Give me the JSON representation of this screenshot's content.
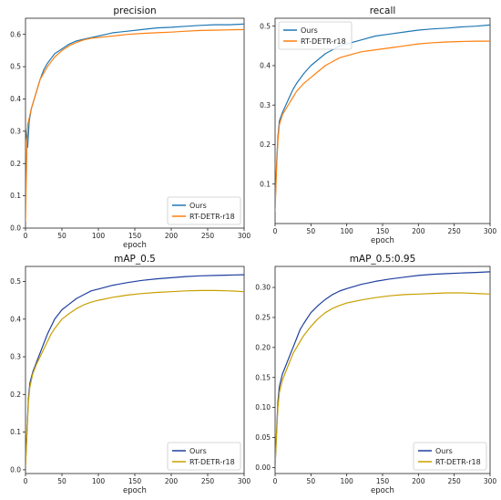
{
  "chart_data": [
    {
      "type": "line",
      "title": "precision",
      "xlabel": "epoch",
      "ylabel": "",
      "xlim": [
        0,
        300
      ],
      "ylim": [
        0.0,
        0.65
      ],
      "xticks": [
        "0",
        "50",
        "100",
        "150",
        "200",
        "250",
        "300"
      ],
      "yticks": [
        "0.0",
        "0.1",
        "0.2",
        "0.3",
        "0.4",
        "0.5",
        "0.6"
      ],
      "legend": "bottom-right",
      "series": [
        {
          "name": "Ours",
          "color": "#1f77b4",
          "points": [
            [
              0,
              0.31
            ],
            [
              2,
              0.27
            ],
            [
              3,
              0.25
            ],
            [
              5,
              0.33
            ],
            [
              8,
              0.37
            ],
            [
              12,
              0.4
            ],
            [
              16,
              0.43
            ],
            [
              20,
              0.46
            ],
            [
              25,
              0.49
            ],
            [
              30,
              0.51
            ],
            [
              35,
              0.525
            ],
            [
              40,
              0.54
            ],
            [
              50,
              0.555
            ],
            [
              60,
              0.57
            ],
            [
              70,
              0.58
            ],
            [
              80,
              0.585
            ],
            [
              90,
              0.59
            ],
            [
              100,
              0.595
            ],
            [
              110,
              0.6
            ],
            [
              120,
              0.605
            ],
            [
              140,
              0.61
            ],
            [
              160,
              0.615
            ],
            [
              180,
              0.62
            ],
            [
              200,
              0.622
            ],
            [
              220,
              0.625
            ],
            [
              240,
              0.628
            ],
            [
              260,
              0.63
            ],
            [
              280,
              0.63
            ],
            [
              300,
              0.632
            ]
          ]
        },
        {
          "name": "RT-DETR-r18",
          "color": "#ff7f0e",
          "points": [
            [
              0,
              0.02
            ],
            [
              1,
              0.15
            ],
            [
              2,
              0.26
            ],
            [
              3,
              0.32
            ],
            [
              5,
              0.34
            ],
            [
              8,
              0.37
            ],
            [
              12,
              0.4
            ],
            [
              16,
              0.43
            ],
            [
              20,
              0.46
            ],
            [
              25,
              0.48
            ],
            [
              30,
              0.5
            ],
            [
              35,
              0.515
            ],
            [
              40,
              0.53
            ],
            [
              50,
              0.55
            ],
            [
              60,
              0.565
            ],
            [
              70,
              0.575
            ],
            [
              80,
              0.583
            ],
            [
              90,
              0.588
            ],
            [
              100,
              0.59
            ],
            [
              110,
              0.593
            ],
            [
              120,
              0.595
            ],
            [
              140,
              0.6
            ],
            [
              160,
              0.603
            ],
            [
              180,
              0.605
            ],
            [
              200,
              0.607
            ],
            [
              220,
              0.61
            ],
            [
              240,
              0.612
            ],
            [
              260,
              0.613
            ],
            [
              280,
              0.614
            ],
            [
              300,
              0.615
            ]
          ]
        }
      ]
    },
    {
      "type": "line",
      "title": "recall",
      "xlabel": "epoch",
      "ylabel": "",
      "xlim": [
        0,
        300
      ],
      "ylim": [
        0.0,
        0.52
      ],
      "xticks": [
        "0",
        "50",
        "100",
        "150",
        "200",
        "250",
        "300"
      ],
      "yticks": [
        "0.1",
        "0.2",
        "0.3",
        "0.4",
        "0.5"
      ],
      "legend": "top-left",
      "series": [
        {
          "name": "Ours",
          "color": "#1f77b4",
          "points": [
            [
              0,
              0.04
            ],
            [
              2,
              0.15
            ],
            [
              4,
              0.22
            ],
            [
              6,
              0.26
            ],
            [
              10,
              0.28
            ],
            [
              15,
              0.3
            ],
            [
              20,
              0.32
            ],
            [
              25,
              0.34
            ],
            [
              30,
              0.355
            ],
            [
              40,
              0.38
            ],
            [
              50,
              0.4
            ],
            [
              60,
              0.415
            ],
            [
              70,
              0.43
            ],
            [
              80,
              0.44
            ],
            [
              90,
              0.45
            ],
            [
              100,
              0.455
            ],
            [
              120,
              0.465
            ],
            [
              140,
              0.475
            ],
            [
              160,
              0.48
            ],
            [
              180,
              0.485
            ],
            [
              200,
              0.49
            ],
            [
              220,
              0.493
            ],
            [
              240,
              0.495
            ],
            [
              260,
              0.498
            ],
            [
              280,
              0.5
            ],
            [
              300,
              0.503
            ]
          ]
        },
        {
          "name": "RT-DETR-r18",
          "color": "#ff7f0e",
          "points": [
            [
              0,
              0.03
            ],
            [
              2,
              0.14
            ],
            [
              4,
              0.21
            ],
            [
              6,
              0.25
            ],
            [
              10,
              0.275
            ],
            [
              15,
              0.29
            ],
            [
              20,
              0.305
            ],
            [
              25,
              0.32
            ],
            [
              30,
              0.335
            ],
            [
              40,
              0.355
            ],
            [
              50,
              0.37
            ],
            [
              60,
              0.385
            ],
            [
              70,
              0.4
            ],
            [
              80,
              0.41
            ],
            [
              90,
              0.42
            ],
            [
              100,
              0.425
            ],
            [
              120,
              0.435
            ],
            [
              140,
              0.44
            ],
            [
              160,
              0.445
            ],
            [
              180,
              0.45
            ],
            [
              200,
              0.455
            ],
            [
              220,
              0.458
            ],
            [
              240,
              0.46
            ],
            [
              260,
              0.461
            ],
            [
              280,
              0.462
            ],
            [
              300,
              0.462
            ]
          ]
        }
      ]
    },
    {
      "type": "line",
      "title": "mAP_0.5",
      "xlabel": "epoch",
      "ylabel": "",
      "xlim": [
        0,
        300
      ],
      "ylim": [
        -0.01,
        0.54
      ],
      "xticks": [
        "0",
        "50",
        "100",
        "150",
        "200",
        "250",
        "300"
      ],
      "yticks": [
        "0.0",
        "0.1",
        "0.2",
        "0.3",
        "0.4",
        "0.5"
      ],
      "legend": "bottom-right",
      "series": [
        {
          "name": "Ours",
          "color": "#1f3fa0",
          "points": [
            [
              0,
              0.01
            ],
            [
              2,
              0.1
            ],
            [
              4,
              0.19
            ],
            [
              6,
              0.23
            ],
            [
              10,
              0.26
            ],
            [
              15,
              0.285
            ],
            [
              20,
              0.31
            ],
            [
              25,
              0.335
            ],
            [
              30,
              0.36
            ],
            [
              35,
              0.38
            ],
            [
              40,
              0.4
            ],
            [
              50,
              0.425
            ],
            [
              60,
              0.44
            ],
            [
              70,
              0.455
            ],
            [
              80,
              0.465
            ],
            [
              90,
              0.475
            ],
            [
              100,
              0.48
            ],
            [
              120,
              0.49
            ],
            [
              140,
              0.497
            ],
            [
              160,
              0.503
            ],
            [
              180,
              0.507
            ],
            [
              200,
              0.51
            ],
            [
              220,
              0.513
            ],
            [
              240,
              0.515
            ],
            [
              260,
              0.516
            ],
            [
              280,
              0.517
            ],
            [
              300,
              0.518
            ]
          ]
        },
        {
          "name": "RT-DETR-r18",
          "color": "#c8a000",
          "points": [
            [
              0,
              0.01
            ],
            [
              2,
              0.1
            ],
            [
              4,
              0.18
            ],
            [
              6,
              0.22
            ],
            [
              10,
              0.255
            ],
            [
              15,
              0.28
            ],
            [
              20,
              0.3
            ],
            [
              25,
              0.32
            ],
            [
              30,
              0.34
            ],
            [
              35,
              0.36
            ],
            [
              40,
              0.375
            ],
            [
              50,
              0.4
            ],
            [
              60,
              0.415
            ],
            [
              70,
              0.428
            ],
            [
              80,
              0.438
            ],
            [
              90,
              0.445
            ],
            [
              100,
              0.45
            ],
            [
              120,
              0.458
            ],
            [
              140,
              0.464
            ],
            [
              160,
              0.468
            ],
            [
              180,
              0.471
            ],
            [
              200,
              0.473
            ],
            [
              220,
              0.475
            ],
            [
              240,
              0.476
            ],
            [
              260,
              0.476
            ],
            [
              280,
              0.475
            ],
            [
              300,
              0.473
            ]
          ]
        }
      ]
    },
    {
      "type": "line",
      "title": "mAP_0.5:0.95",
      "xlabel": "epoch",
      "ylabel": "",
      "xlim": [
        0,
        300
      ],
      "ylim": [
        -0.01,
        0.335
      ],
      "xticks": [
        "0",
        "50",
        "100",
        "150",
        "200",
        "250",
        "300"
      ],
      "yticks": [
        "0.00",
        "0.05",
        "0.10",
        "0.15",
        "0.20",
        "0.25",
        "0.30"
      ],
      "legend": "bottom-right",
      "series": [
        {
          "name": "Ours",
          "color": "#1f3fa0",
          "points": [
            [
              0,
              0.0
            ],
            [
              2,
              0.06
            ],
            [
              4,
              0.11
            ],
            [
              6,
              0.135
            ],
            [
              10,
              0.155
            ],
            [
              15,
              0.17
            ],
            [
              20,
              0.185
            ],
            [
              25,
              0.2
            ],
            [
              30,
              0.215
            ],
            [
              35,
              0.23
            ],
            [
              40,
              0.24
            ],
            [
              50,
              0.258
            ],
            [
              60,
              0.27
            ],
            [
              70,
              0.28
            ],
            [
              80,
              0.288
            ],
            [
              90,
              0.294
            ],
            [
              100,
              0.298
            ],
            [
              120,
              0.305
            ],
            [
              140,
              0.31
            ],
            [
              160,
              0.314
            ],
            [
              180,
              0.317
            ],
            [
              200,
              0.32
            ],
            [
              220,
              0.322
            ],
            [
              240,
              0.323
            ],
            [
              260,
              0.324
            ],
            [
              280,
              0.325
            ],
            [
              300,
              0.326
            ]
          ]
        },
        {
          "name": "RT-DETR-r18",
          "color": "#c8a000",
          "points": [
            [
              0,
              0.0
            ],
            [
              2,
              0.055
            ],
            [
              4,
              0.1
            ],
            [
              6,
              0.125
            ],
            [
              10,
              0.145
            ],
            [
              15,
              0.16
            ],
            [
              20,
              0.175
            ],
            [
              25,
              0.19
            ],
            [
              30,
              0.2
            ],
            [
              35,
              0.21
            ],
            [
              40,
              0.22
            ],
            [
              50,
              0.235
            ],
            [
              60,
              0.248
            ],
            [
              70,
              0.258
            ],
            [
              80,
              0.265
            ],
            [
              90,
              0.27
            ],
            [
              100,
              0.274
            ],
            [
              120,
              0.279
            ],
            [
              140,
              0.283
            ],
            [
              160,
              0.286
            ],
            [
              180,
              0.288
            ],
            [
              200,
              0.289
            ],
            [
              220,
              0.29
            ],
            [
              240,
              0.291
            ],
            [
              260,
              0.291
            ],
            [
              280,
              0.29
            ],
            [
              300,
              0.289
            ]
          ]
        }
      ]
    }
  ]
}
